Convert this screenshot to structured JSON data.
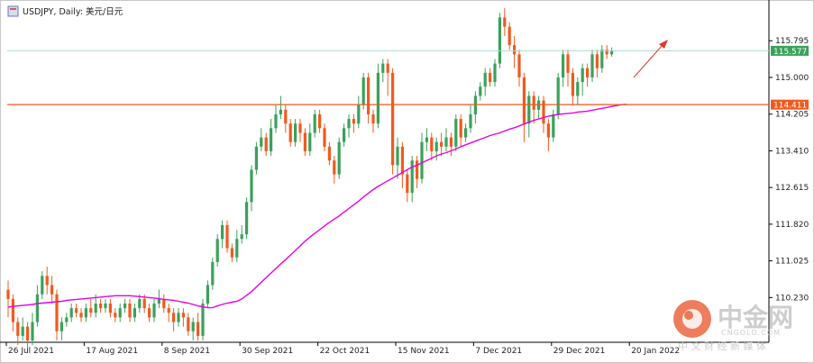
{
  "chart_data": {
    "type": "candlestick",
    "title": "USDJPY, Daily: 美元/日元",
    "symbol_icon": "chart-window-icon",
    "x_tick_labels": [
      "26 Jul 2021",
      "17 Aug 2021",
      "8 Sep 2021",
      "30 Sep 2021",
      "22 Oct 2021",
      "15 Nov 2021",
      "7 Dec 2021",
      "29 Dec 2021",
      "20 Jan 2022"
    ],
    "y_tick_labels": [
      "115.795",
      "115.000",
      "114.205",
      "113.410",
      "112.615",
      "111.820",
      "111.025",
      "110.230"
    ],
    "ylim": [
      109.3,
      116.6
    ],
    "grid": false,
    "bull_color": "#3aa15a",
    "bear_color": "#f05a1e",
    "ma_color": "#e600e6",
    "current_price": {
      "label": "115.577",
      "value": 115.577,
      "color": "#3aa15a",
      "line_color": "#a9d9cc"
    },
    "support_line": {
      "label": "114.411",
      "value": 114.411,
      "color": "#f05a1e"
    },
    "ma_values": [
      110.02,
      110.04,
      110.05,
      110.06,
      110.07,
      110.08,
      110.1,
      110.11,
      110.12,
      110.13,
      110.14,
      110.15,
      110.17,
      110.18,
      110.19,
      110.2,
      110.21,
      110.22,
      110.23,
      110.24,
      110.25,
      110.26,
      110.27,
      110.27,
      110.27,
      110.27,
      110.26,
      110.25,
      110.24,
      110.23,
      110.22,
      110.21,
      110.19,
      110.18,
      110.17,
      110.15,
      110.13,
      110.11,
      110.08,
      110.05,
      110.03,
      110.01,
      110.01,
      110.05,
      110.08,
      110.11,
      110.13,
      110.15,
      110.2,
      110.28,
      110.36,
      110.46,
      110.56,
      110.66,
      110.76,
      110.86,
      110.96,
      111.05,
      111.15,
      111.25,
      111.35,
      111.45,
      111.54,
      111.62,
      111.7,
      111.78,
      111.86,
      111.93,
      112.0,
      112.08,
      112.16,
      112.24,
      112.32,
      112.41,
      112.49,
      112.57,
      112.64,
      112.7,
      112.76,
      112.82,
      112.88,
      112.94,
      113.0,
      113.06,
      113.1,
      113.15,
      113.2,
      113.25,
      113.3,
      113.34,
      113.37,
      113.41,
      113.45,
      113.5,
      113.54,
      113.58,
      113.62,
      113.66,
      113.7,
      113.74,
      113.77,
      113.8,
      113.84,
      113.88,
      113.91,
      113.95,
      113.99,
      114.03,
      114.07,
      114.1,
      114.13,
      114.16,
      114.18,
      114.2,
      114.21,
      114.22,
      114.23,
      114.25,
      114.26,
      114.27,
      114.29,
      114.31,
      114.33,
      114.35,
      114.37,
      114.39,
      114.41,
      114.42
    ],
    "candles": [
      [
        110.4,
        110.2,
        110.6,
        109.8
      ],
      [
        110.2,
        109.7,
        110.3,
        109.5
      ],
      [
        109.7,
        109.4,
        109.8,
        109.2
      ],
      [
        109.4,
        109.6,
        109.8,
        109.3
      ],
      [
        109.6,
        109.3,
        109.7,
        109.1
      ],
      [
        109.3,
        109.7,
        109.9,
        109.2
      ],
      [
        109.7,
        110.3,
        110.5,
        109.6
      ],
      [
        110.3,
        110.7,
        110.8,
        110.2
      ],
      [
        110.7,
        110.5,
        110.9,
        110.3
      ],
      [
        110.5,
        110.3,
        110.7,
        110.1
      ],
      [
        110.3,
        109.5,
        110.4,
        109.3
      ],
      [
        109.5,
        109.7,
        109.8,
        109.3
      ],
      [
        109.7,
        109.8,
        109.9,
        109.6
      ],
      [
        109.8,
        110.0,
        110.1,
        109.7
      ],
      [
        110.0,
        109.9,
        110.1,
        109.8
      ],
      [
        109.9,
        109.8,
        110.0,
        109.7
      ],
      [
        109.8,
        110.0,
        110.1,
        109.7
      ],
      [
        110.0,
        109.9,
        110.2,
        109.8
      ],
      [
        109.9,
        110.1,
        110.3,
        109.8
      ],
      [
        110.1,
        110.0,
        110.2,
        109.9
      ],
      [
        110.0,
        110.1,
        110.2,
        109.9
      ],
      [
        110.1,
        109.9,
        110.2,
        109.8
      ],
      [
        109.9,
        109.8,
        110.0,
        109.7
      ],
      [
        109.8,
        110.0,
        110.1,
        109.7
      ],
      [
        110.0,
        110.1,
        110.2,
        109.9
      ],
      [
        110.1,
        109.8,
        110.2,
        109.7
      ],
      [
        109.8,
        110.0,
        110.1,
        109.7
      ],
      [
        110.0,
        110.2,
        110.3,
        109.9
      ],
      [
        110.2,
        110.0,
        110.3,
        109.9
      ],
      [
        110.0,
        109.8,
        110.1,
        109.7
      ],
      [
        109.8,
        110.1,
        110.2,
        109.7
      ],
      [
        110.1,
        110.2,
        110.4,
        110.0
      ],
      [
        110.2,
        110.0,
        110.3,
        109.9
      ],
      [
        110.0,
        109.9,
        110.1,
        109.7
      ],
      [
        109.9,
        109.7,
        110.0,
        109.5
      ],
      [
        109.7,
        109.9,
        110.0,
        109.6
      ],
      [
        109.9,
        109.8,
        110.0,
        109.6
      ],
      [
        109.8,
        109.5,
        109.9,
        109.4
      ],
      [
        109.5,
        109.7,
        109.8,
        109.3
      ],
      [
        109.7,
        109.4,
        109.9,
        109.3
      ],
      [
        109.4,
        110.1,
        110.2,
        109.3
      ],
      [
        110.1,
        110.5,
        110.6,
        110.0
      ],
      [
        110.5,
        111.0,
        111.1,
        110.4
      ],
      [
        111.0,
        111.5,
        111.6,
        110.9
      ],
      [
        111.5,
        111.8,
        111.9,
        111.3
      ],
      [
        111.8,
        111.3,
        111.9,
        111.2
      ],
      [
        111.3,
        111.1,
        111.4,
        111.0
      ],
      [
        111.1,
        111.5,
        111.7,
        111.0
      ],
      [
        111.5,
        111.6,
        111.8,
        111.4
      ],
      [
        111.6,
        112.3,
        112.4,
        111.5
      ],
      [
        112.3,
        113.0,
        113.1,
        112.1
      ],
      [
        113.0,
        113.5,
        113.6,
        112.9
      ],
      [
        113.5,
        113.7,
        113.9,
        113.4
      ],
      [
        113.7,
        113.4,
        113.8,
        113.3
      ],
      [
        113.4,
        113.9,
        114.1,
        113.3
      ],
      [
        113.9,
        114.2,
        114.4,
        113.8
      ],
      [
        114.2,
        114.3,
        114.6,
        114.1
      ],
      [
        114.3,
        114.0,
        114.4,
        113.8
      ],
      [
        114.0,
        113.6,
        114.1,
        113.5
      ],
      [
        113.6,
        114.0,
        114.1,
        113.5
      ],
      [
        114.0,
        113.8,
        114.1,
        113.6
      ],
      [
        113.8,
        113.4,
        113.9,
        113.3
      ],
      [
        113.4,
        113.8,
        114.0,
        113.3
      ],
      [
        113.8,
        114.2,
        114.3,
        113.7
      ],
      [
        114.2,
        113.9,
        114.3,
        113.8
      ],
      [
        113.9,
        113.5,
        114.0,
        113.4
      ],
      [
        113.5,
        113.2,
        113.6,
        113.1
      ],
      [
        113.2,
        112.9,
        113.3,
        112.7
      ],
      [
        112.9,
        113.6,
        113.7,
        112.8
      ],
      [
        113.6,
        113.9,
        114.0,
        113.5
      ],
      [
        113.9,
        114.1,
        114.2,
        113.7
      ],
      [
        114.1,
        114.0,
        114.2,
        113.8
      ],
      [
        114.0,
        114.4,
        114.6,
        113.9
      ],
      [
        114.4,
        115.0,
        115.1,
        114.3
      ],
      [
        115.0,
        114.2,
        115.1,
        114.0
      ],
      [
        114.2,
        114.0,
        114.3,
        113.8
      ],
      [
        114.0,
        115.1,
        115.3,
        113.9
      ],
      [
        115.1,
        115.3,
        115.4,
        114.9
      ],
      [
        115.3,
        115.1,
        115.4,
        114.6
      ],
      [
        115.1,
        113.1,
        115.2,
        112.9
      ],
      [
        113.1,
        113.5,
        113.7,
        112.8
      ],
      [
        113.5,
        112.9,
        113.6,
        112.6
      ],
      [
        112.9,
        112.5,
        113.0,
        112.3
      ],
      [
        112.5,
        113.2,
        113.3,
        112.3
      ],
      [
        113.2,
        112.8,
        113.3,
        112.6
      ],
      [
        112.8,
        113.6,
        113.8,
        112.7
      ],
      [
        113.6,
        113.7,
        113.9,
        113.4
      ],
      [
        113.7,
        113.4,
        113.8,
        113.2
      ],
      [
        113.4,
        113.6,
        113.7,
        113.2
      ],
      [
        113.6,
        113.5,
        113.8,
        113.3
      ],
      [
        113.5,
        113.7,
        113.9,
        113.4
      ],
      [
        113.7,
        113.5,
        113.8,
        113.3
      ],
      [
        113.5,
        114.1,
        114.2,
        113.4
      ],
      [
        114.1,
        113.7,
        114.2,
        113.5
      ],
      [
        113.7,
        113.9,
        114.0,
        113.6
      ],
      [
        113.9,
        114.2,
        114.4,
        113.8
      ],
      [
        114.2,
        114.6,
        114.7,
        114.0
      ],
      [
        114.6,
        114.8,
        114.9,
        114.5
      ],
      [
        114.8,
        115.1,
        115.2,
        114.6
      ],
      [
        115.1,
        114.9,
        115.2,
        114.8
      ],
      [
        114.9,
        115.3,
        115.4,
        114.8
      ],
      [
        115.3,
        116.3,
        116.4,
        115.2
      ],
      [
        116.3,
        116.1,
        116.5,
        115.9
      ],
      [
        116.1,
        115.7,
        116.2,
        115.6
      ],
      [
        115.7,
        115.5,
        115.9,
        115.2
      ],
      [
        115.5,
        115.0,
        115.6,
        114.8
      ],
      [
        115.0,
        114.0,
        115.1,
        113.6
      ],
      [
        114.0,
        114.6,
        114.7,
        113.7
      ],
      [
        114.6,
        114.3,
        114.7,
        114.0
      ],
      [
        114.3,
        114.5,
        114.6,
        114.1
      ],
      [
        114.5,
        114.0,
        114.6,
        113.8
      ],
      [
        114.0,
        113.7,
        114.1,
        113.4
      ],
      [
        113.7,
        114.2,
        114.3,
        113.6
      ],
      [
        114.2,
        115.0,
        115.1,
        114.1
      ],
      [
        115.0,
        115.5,
        115.6,
        114.8
      ],
      [
        115.5,
        115.1,
        115.6,
        114.8
      ],
      [
        115.1,
        114.6,
        115.2,
        114.4
      ],
      [
        114.6,
        114.9,
        115.0,
        114.4
      ],
      [
        114.9,
        115.2,
        115.3,
        114.6
      ],
      [
        115.2,
        115.0,
        115.3,
        114.8
      ],
      [
        115.0,
        115.5,
        115.6,
        114.9
      ],
      [
        115.5,
        115.2,
        115.6,
        115.0
      ],
      [
        115.2,
        115.6,
        115.7,
        115.1
      ],
      [
        115.6,
        115.5,
        115.7,
        115.4
      ],
      [
        115.5,
        115.58,
        115.65,
        115.45
      ]
    ]
  },
  "watermark": {
    "brand": "中金网",
    "domain": "CNGOLD.COM",
    "tagline": "中 文 财 经 新 媒 体"
  }
}
